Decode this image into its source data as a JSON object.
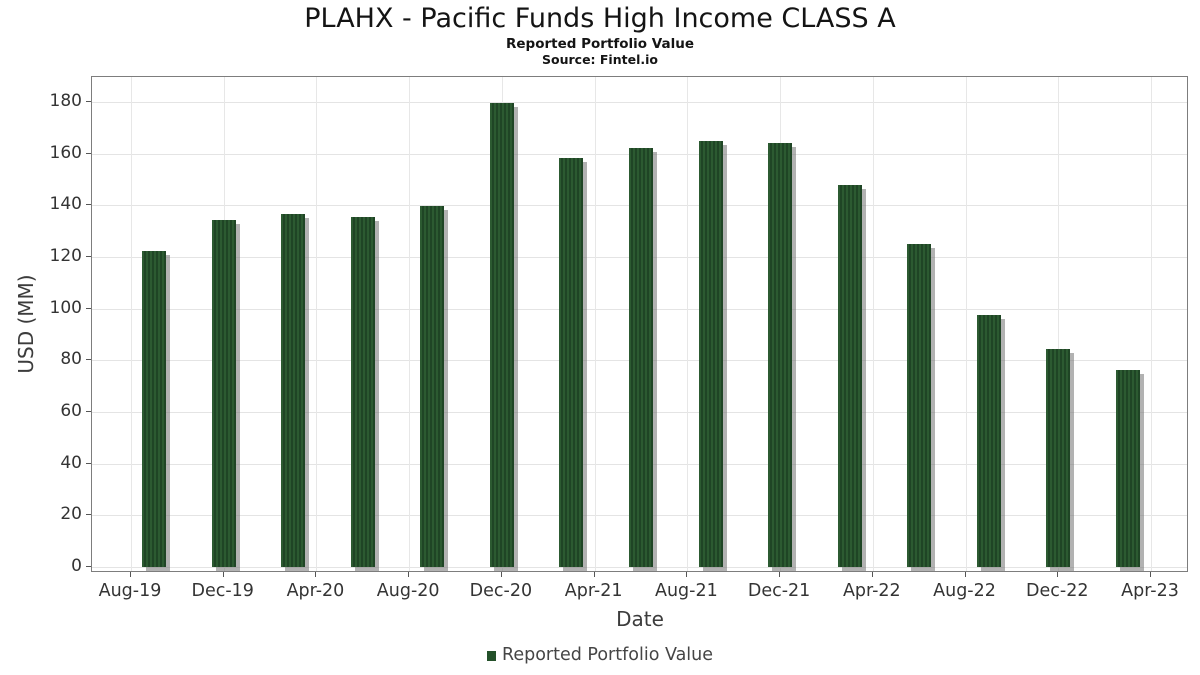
{
  "title": "PLAHX - Pacific Funds High Income CLASS A",
  "subtitle": "Reported Portfolio Value",
  "source": "Source: Fintel.io",
  "colors": {
    "bar_fill": "#2c5a31",
    "bar_stripe": "#1f4525",
    "bar_shadow": "rgba(115,115,115,0.55)",
    "grid": "#e4e4e4",
    "frame": "#7d7d7d",
    "legend_swatch": "#24512a",
    "text": "#141414",
    "axis_text": "#343434"
  },
  "chart_data": {
    "type": "bar",
    "title": "PLAHX - Pacific Funds High Income CLASS A",
    "subtitle": "Reported Portfolio Value",
    "source": "Source: Fintel.io",
    "xlabel": "Date",
    "ylabel": "USD (MM)",
    "grid": true,
    "legend_position": "bottom",
    "legend_label": "Reported Portfolio Value",
    "ylim": [
      0,
      190
    ],
    "y_ticks": [
      0,
      20,
      40,
      60,
      80,
      100,
      120,
      140,
      160,
      180
    ],
    "x_tick_labels": [
      "Aug-19",
      "Dec-19",
      "Apr-20",
      "Aug-20",
      "Dec-20",
      "Apr-21",
      "Aug-21",
      "Dec-21",
      "Apr-22",
      "Aug-22",
      "Dec-22",
      "Apr-23"
    ],
    "x_tick_month_index": [
      0,
      4,
      8,
      12,
      16,
      20,
      24,
      28,
      32,
      36,
      40,
      44
    ],
    "series": [
      {
        "name": "Reported Portfolio Value",
        "points": [
          {
            "date": "Sep-19",
            "month_index": 1,
            "value": 122.3
          },
          {
            "date": "Dec-19",
            "month_index": 4,
            "value": 134.2
          },
          {
            "date": "Mar-20",
            "month_index": 7,
            "value": 136.6
          },
          {
            "date": "Jun-20",
            "month_index": 10,
            "value": 135.4
          },
          {
            "date": "Sep-20",
            "month_index": 13,
            "value": 139.6
          },
          {
            "date": "Dec-20",
            "month_index": 16,
            "value": 179.5
          },
          {
            "date": "Mar-21",
            "month_index": 19,
            "value": 158.4
          },
          {
            "date": "Jun-21",
            "month_index": 22,
            "value": 162.3
          },
          {
            "date": "Sep-21",
            "month_index": 25,
            "value": 164.8
          },
          {
            "date": "Dec-21",
            "month_index": 28,
            "value": 164.2
          },
          {
            "date": "Mar-22",
            "month_index": 31,
            "value": 147.8
          },
          {
            "date": "Jun-22",
            "month_index": 34,
            "value": 124.9
          },
          {
            "date": "Sep-22",
            "month_index": 37,
            "value": 97.4
          },
          {
            "date": "Dec-22",
            "month_index": 40,
            "value": 84.5
          },
          {
            "date": "Mar-23",
            "month_index": 43,
            "value": 76.4
          }
        ]
      }
    ]
  }
}
